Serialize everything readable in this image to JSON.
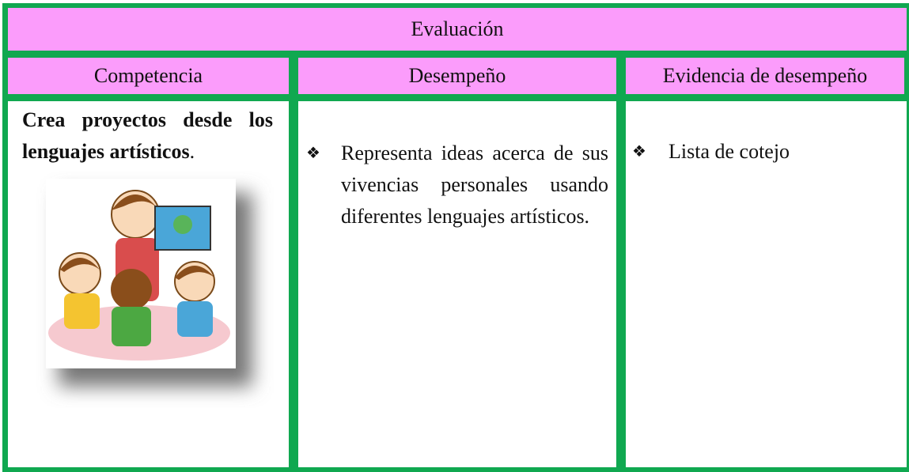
{
  "table": {
    "title": "Evaluación",
    "headers": [
      "Competencia",
      "Desempeño",
      "Evidencia de desempeño"
    ],
    "rows": [
      [
        {
          "bold": "Crea proyectos desde los lenguajes artísticos",
          "tail": "."
        },
        {
          "bullet": "❖",
          "text": "Representa ideas acerca de sus vivencias personales usando diferentes lenguajes artísticos."
        },
        {
          "bullet": "❖",
          "text": "Lista de cotejo"
        }
      ]
    ]
  }
}
